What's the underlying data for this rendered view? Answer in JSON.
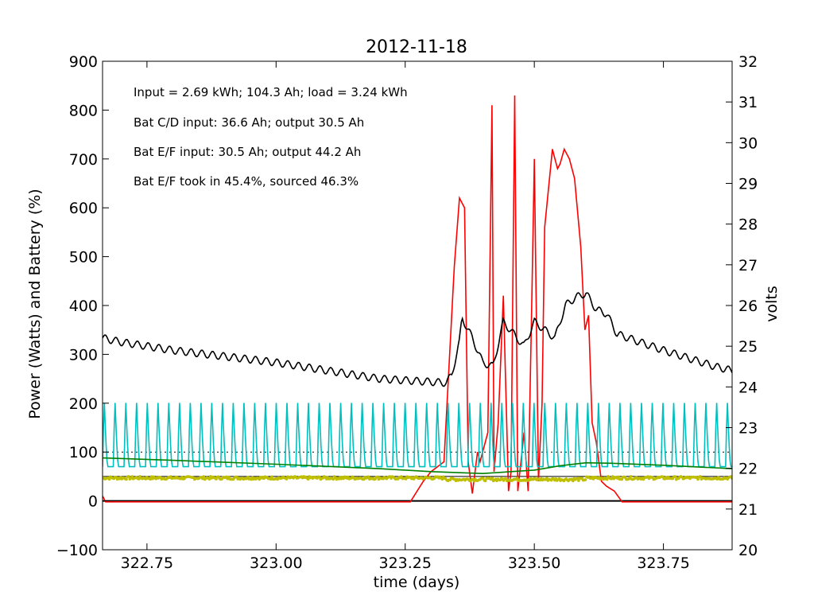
{
  "chart_data": {
    "type": "line",
    "title": "2012-11-18",
    "xlabel": "time (days)",
    "ylabel_left": "Power (Watts) and Battery (%)",
    "ylabel_right": "volts",
    "xlim": [
      322.664,
      323.883
    ],
    "ylim_left": [
      -100,
      900
    ],
    "ylim_right": [
      20,
      32
    ],
    "xticks": [
      "322.75",
      "323.00",
      "323.25",
      "323.50",
      "323.75"
    ],
    "xtick_values": [
      322.75,
      323.0,
      323.25,
      323.5,
      323.75
    ],
    "yticks_left": [
      "−100",
      "0",
      "100",
      "200",
      "300",
      "400",
      "500",
      "600",
      "700",
      "800",
      "900"
    ],
    "ytick_left_values": [
      -100,
      0,
      100,
      200,
      300,
      400,
      500,
      600,
      700,
      800,
      900
    ],
    "yticks_right": [
      "20",
      "21",
      "22",
      "23",
      "24",
      "25",
      "26",
      "27",
      "28",
      "29",
      "30",
      "31",
      "32"
    ],
    "ytick_right_values": [
      20,
      21,
      22,
      23,
      24,
      25,
      26,
      27,
      28,
      29,
      30,
      31,
      32
    ],
    "grid": false,
    "reference_lines": [
      {
        "y": 100,
        "axis": "left",
        "style": "dotted",
        "color": "#000000"
      },
      {
        "y": 50,
        "axis": "left",
        "style": "solid",
        "color": "#000000"
      },
      {
        "y": 0,
        "axis": "left",
        "style": "solid",
        "color": "#000000"
      }
    ],
    "annotations": [
      "Input = 2.69 kWh; 104.3 Ah; load = 3.24 kWh",
      "Bat C/D input: 36.6 Ah; output 30.5 Ah",
      "Bat E/F input: 30.5 Ah; output 44.2 Ah",
      "Bat E/F took in 45.4%, sourced 46.3%"
    ],
    "series": [
      {
        "color": "#ff0000",
        "axis": "left",
        "style": "line",
        "x": [
          322.664,
          322.67,
          322.68,
          323.0,
          323.26,
          323.285,
          323.3,
          323.325,
          323.345,
          323.355,
          323.365,
          323.372,
          323.38,
          323.39,
          323.395,
          323.41,
          323.418,
          323.422,
          323.43,
          323.44,
          323.45,
          323.455,
          323.462,
          323.468,
          323.48,
          323.488,
          323.495,
          323.5,
          323.508,
          323.515,
          323.52,
          323.535,
          323.54,
          323.545,
          323.55,
          323.558,
          323.568,
          323.578,
          323.59,
          323.598,
          323.605,
          323.612,
          323.62,
          323.63,
          323.64,
          323.655,
          323.67,
          323.68,
          323.883
        ],
        "y": [
          10,
          -2,
          -2,
          -2,
          -2,
          40,
          60,
          80,
          480,
          620,
          600,
          80,
          15,
          100,
          80,
          140,
          810,
          60,
          160,
          420,
          20,
          60,
          830,
          20,
          140,
          20,
          400,
          700,
          40,
          200,
          560,
          720,
          700,
          680,
          690,
          720,
          700,
          660,
          520,
          350,
          380,
          160,
          120,
          40,
          30,
          20,
          -2,
          -2,
          -2
        ]
      },
      {
        "color": "#000000",
        "axis": "right",
        "style": "line",
        "wave_amplitude": 0.09,
        "wave_period_days": 0.0208,
        "x": [
          322.664,
          322.7,
          322.8,
          323.0,
          323.2,
          323.33,
          323.34,
          323.355,
          323.36,
          323.38,
          323.4,
          323.42,
          323.44,
          323.46,
          323.48,
          323.5,
          323.52,
          323.54,
          323.56,
          323.58,
          323.6,
          323.62,
          323.64,
          323.66,
          323.75,
          323.85,
          323.883
        ],
        "y": [
          25.2,
          25.1,
          24.9,
          24.6,
          24.2,
          24.1,
          24.3,
          25.1,
          25.7,
          25.2,
          24.6,
          24.5,
          25.6,
          25.3,
          25.0,
          25.6,
          25.4,
          25.2,
          26.0,
          26.2,
          26.3,
          25.9,
          25.8,
          25.3,
          24.9,
          24.5,
          24.4
        ]
      },
      {
        "color": "#00bfbf",
        "axis": "left",
        "style": "oscillating-line",
        "period_days": 0.0208,
        "low": 70,
        "high": 210,
        "x_range": [
          322.664,
          323.883
        ]
      },
      {
        "color": "#008000",
        "axis": "left",
        "style": "line",
        "x": [
          322.664,
          322.8,
          323.0,
          323.2,
          323.3,
          323.4,
          323.5,
          323.55,
          323.6,
          323.65,
          323.75,
          323.883
        ],
        "y": [
          88,
          83,
          75,
          66,
          60,
          56,
          63,
          72,
          78,
          77,
          73,
          66
        ]
      },
      {
        "color": "#bfbf00",
        "axis": "left",
        "style": "scatter",
        "level": 47,
        "spread": 6,
        "x_range": [
          322.664,
          323.883
        ]
      }
    ]
  }
}
